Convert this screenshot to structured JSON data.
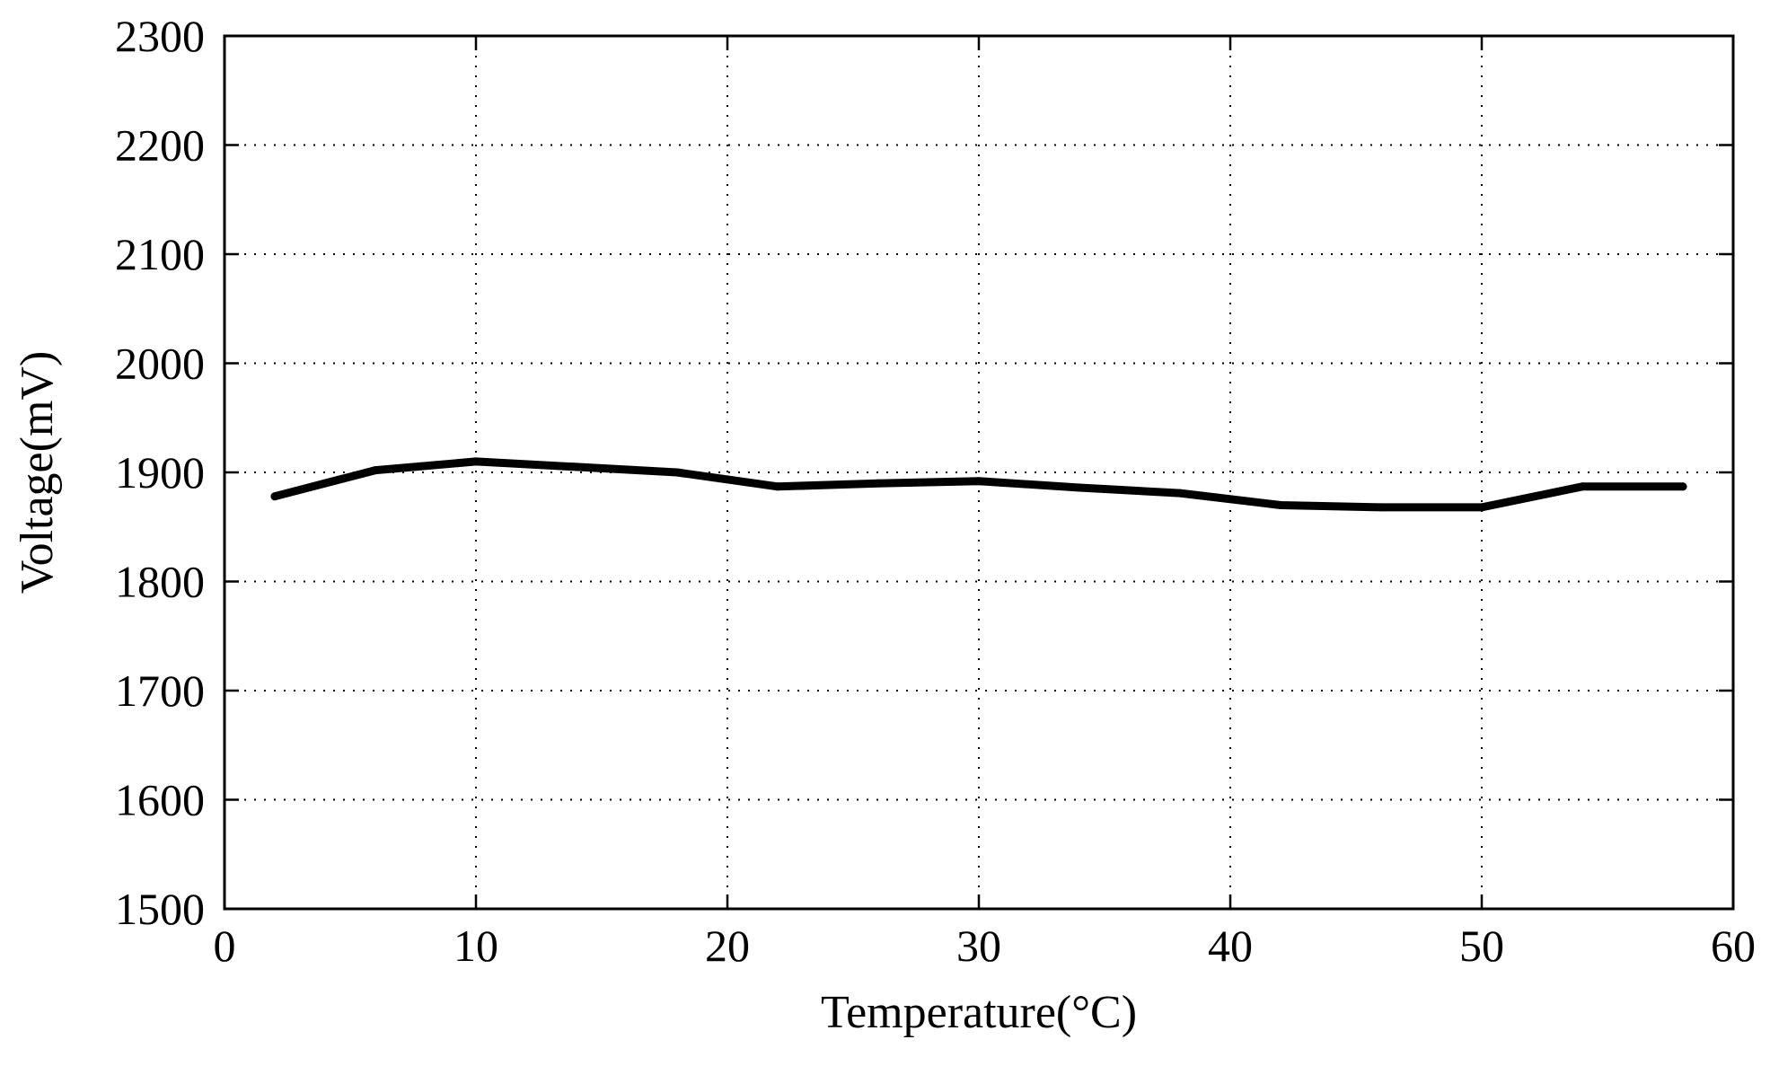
{
  "chart_data": {
    "type": "line",
    "title": "",
    "xlabel": "Temperature(°C)",
    "ylabel": "Voltage(mV)",
    "xlim": [
      0,
      60
    ],
    "ylim": [
      1500,
      2300
    ],
    "x_ticks": [
      "0",
      "10",
      "20",
      "30",
      "40",
      "50",
      "60"
    ],
    "y_ticks": [
      "1500",
      "1600",
      "1700",
      "1800",
      "1900",
      "2000",
      "2100",
      "2200",
      "2300"
    ],
    "grid": true,
    "grid_style": "dotted",
    "legend": "none",
    "series": [
      {
        "color": "#000000",
        "x": [
          2,
          6,
          10,
          14,
          18,
          22,
          26,
          30,
          34,
          38,
          42,
          46,
          50,
          54,
          58
        ],
        "y": [
          1878,
          1902,
          1910,
          1905,
          1900,
          1887,
          1890,
          1892,
          1886,
          1881,
          1870,
          1868,
          1868,
          1887,
          1887
        ]
      }
    ]
  }
}
